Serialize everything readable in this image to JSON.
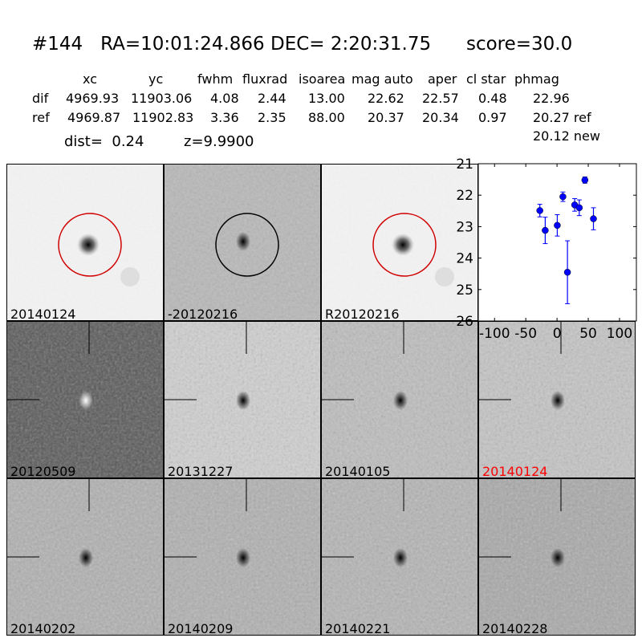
{
  "title": "#144   RA=10:01:24.866 DEC= 2:20:31.75      score=30.0",
  "table": {
    "headers": [
      "xc",
      "yc",
      "fwhm",
      "fluxrad",
      "isoarea",
      "mag auto",
      "aper",
      "cl star",
      "phmag"
    ],
    "rows": [
      {
        "label": "dif",
        "values": [
          "4969.93",
          "11903.06",
          "4.08",
          "2.44",
          "13.00",
          "22.62",
          "22.57",
          "0.48",
          "22.96"
        ]
      },
      {
        "label": "ref",
        "values": [
          "4969.87",
          "11902.83",
          "3.36",
          "2.35",
          "88.00",
          "20.37",
          "20.34",
          "0.97",
          "20.27 ref"
        ]
      }
    ],
    "extra_phmag": "20.12 new",
    "dist": "dist=  0.24",
    "z": "z=9.9900"
  },
  "stamps": [
    {
      "label": "20140124",
      "kind": "new",
      "bg": "#f2f2f2",
      "circle": "#d00000"
    },
    {
      "label": "-20120216",
      "kind": "diff",
      "bg": "#b8b8b8",
      "circle": "#000000"
    },
    {
      "label": "R20120216",
      "kind": "ref",
      "bg": "#f2f2f2",
      "circle": "#d00000"
    },
    {
      "label": "20120509",
      "kind": "epoch",
      "bg": "#555555"
    },
    {
      "label": "20131227",
      "kind": "epoch",
      "bg": "#d0d0d0"
    },
    {
      "label": "20140105",
      "kind": "epoch",
      "bg": "#bdbdbd"
    },
    {
      "label": "20140124",
      "kind": "epoch",
      "bg": "#c4c4c4",
      "label_color": "#ff0000"
    },
    {
      "label": "20140202",
      "kind": "epoch",
      "bg": "#b0b0b0"
    },
    {
      "label": "20140209",
      "kind": "epoch",
      "bg": "#b0b0b0"
    },
    {
      "label": "20140221",
      "kind": "epoch",
      "bg": "#b4b4b4"
    },
    {
      "label": "20140228",
      "kind": "epoch",
      "bg": "#a8a8a8"
    }
  ],
  "chart_data": {
    "type": "scatter",
    "error_bars": true,
    "color": "#0000ff",
    "xlim": [
      -126,
      127
    ],
    "ylim": [
      26,
      21
    ],
    "y_inverted": true,
    "xticks": [
      -100,
      -50,
      0,
      50,
      100
    ],
    "yticks": [
      21,
      22,
      23,
      24,
      25,
      26
    ],
    "points": [
      {
        "x": -27.5,
        "y": 22.49,
        "err": 0.2
      },
      {
        "x": -18.9,
        "y": 23.12,
        "err": 0.42
      },
      {
        "x": 0.4,
        "y": 22.96,
        "err": 0.34
      },
      {
        "x": 9.4,
        "y": 22.05,
        "err": 0.15
      },
      {
        "x": 16.7,
        "y": 24.45,
        "err": 1.0
      },
      {
        "x": 28.3,
        "y": 22.31,
        "err": 0.2
      },
      {
        "x": 35.6,
        "y": 22.4,
        "err": 0.25
      },
      {
        "x": 44.6,
        "y": 21.52,
        "err": 0.1
      },
      {
        "x": 58.3,
        "y": 22.75,
        "err": 0.35
      }
    ]
  }
}
